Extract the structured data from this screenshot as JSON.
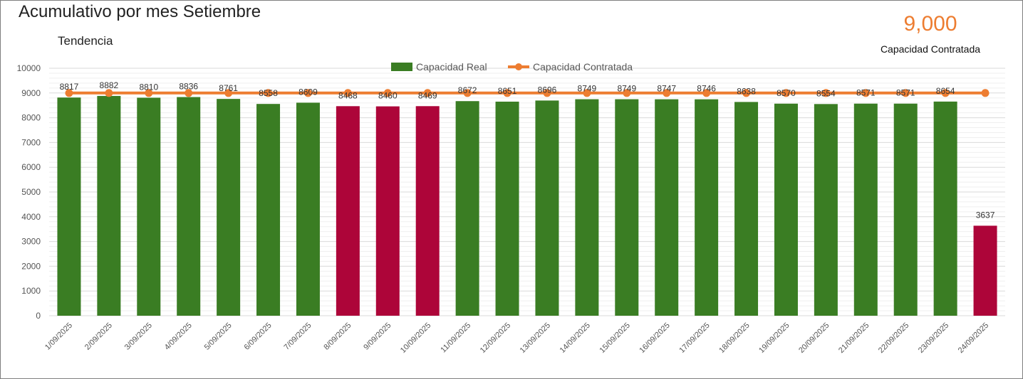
{
  "title": "Acumulativo por mes Setiembre",
  "subtitle": "Tendencia",
  "kpi": {
    "value": "9,000",
    "label": "Capacidad Contratada"
  },
  "colors": {
    "ok": "#3a7d23",
    "below": "#ad0539",
    "line": "#ed7d31",
    "grid": "#d9d9d9"
  },
  "chart_data": {
    "type": "bar",
    "ylim": [
      0,
      10000
    ],
    "yticks": [
      0,
      1000,
      2000,
      3000,
      4000,
      5000,
      6000,
      7000,
      8000,
      9000,
      10000
    ],
    "grid": true,
    "legend_position": "top",
    "categories": [
      "1/09/2025",
      "2/09/2025",
      "3/09/2025",
      "4/09/2025",
      "5/09/2025",
      "6/09/2025",
      "7/09/2025",
      "8/09/2025",
      "9/09/2025",
      "10/09/2025",
      "11/09/2025",
      "12/09/2025",
      "13/09/2025",
      "14/09/2025",
      "15/09/2025",
      "16/09/2025",
      "17/09/2025",
      "18/09/2025",
      "19/09/2025",
      "20/09/2025",
      "21/09/2025",
      "22/09/2025",
      "23/09/2025",
      "24/09/2025"
    ],
    "series": [
      {
        "name": "Capacidad Real",
        "type": "bar",
        "values": [
          8817,
          8882,
          8810,
          8836,
          8761,
          8558,
          8609,
          8468,
          8460,
          8469,
          8672,
          8651,
          8696,
          8749,
          8749,
          8747,
          8746,
          8638,
          8570,
          8554,
          8571,
          8571,
          8654,
          3637
        ],
        "highlight": [
          false,
          false,
          false,
          false,
          false,
          false,
          false,
          true,
          true,
          true,
          false,
          false,
          false,
          false,
          false,
          false,
          false,
          false,
          false,
          false,
          false,
          false,
          false,
          true
        ]
      },
      {
        "name": "Capacidad Contratada",
        "type": "line",
        "values": [
          9000,
          9000,
          9000,
          9000,
          9000,
          9000,
          9000,
          9000,
          9000,
          9000,
          9000,
          9000,
          9000,
          9000,
          9000,
          9000,
          9000,
          9000,
          9000,
          9000,
          9000,
          9000,
          9000,
          9000
        ]
      }
    ]
  }
}
